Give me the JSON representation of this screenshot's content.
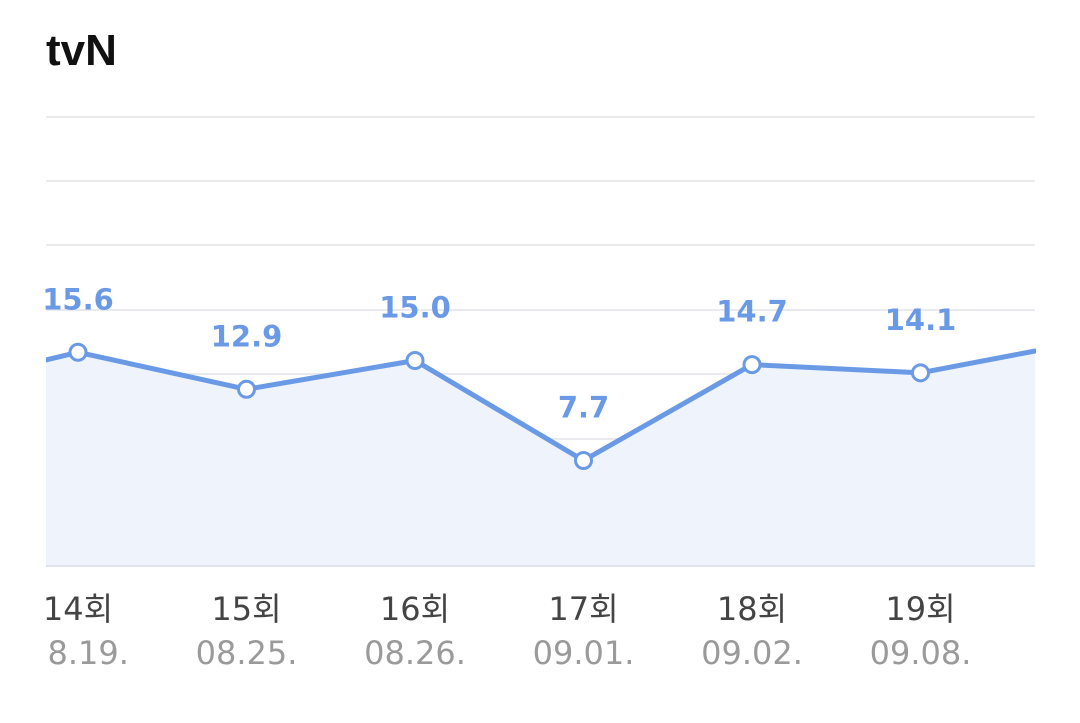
{
  "header": {
    "title": "tvN"
  },
  "colors": {
    "line": "#6a9ae6",
    "area": "#eef3fc",
    "grid": "#e8eaee",
    "label": "#6a9ae6"
  },
  "chart_data": {
    "type": "line",
    "grid": true,
    "categories": [
      "14회",
      "15회",
      "16회",
      "17회",
      "18회",
      "19회"
    ],
    "dates": [
      "08.19.",
      "08.25.",
      "08.26.",
      "09.01.",
      "09.02.",
      "09.08."
    ],
    "values": [
      15.6,
      12.9,
      15.0,
      7.7,
      14.7,
      14.1
    ],
    "labels": [
      "15.6",
      "12.9",
      "15.0",
      "7.7",
      "14.7",
      "14.1"
    ]
  }
}
